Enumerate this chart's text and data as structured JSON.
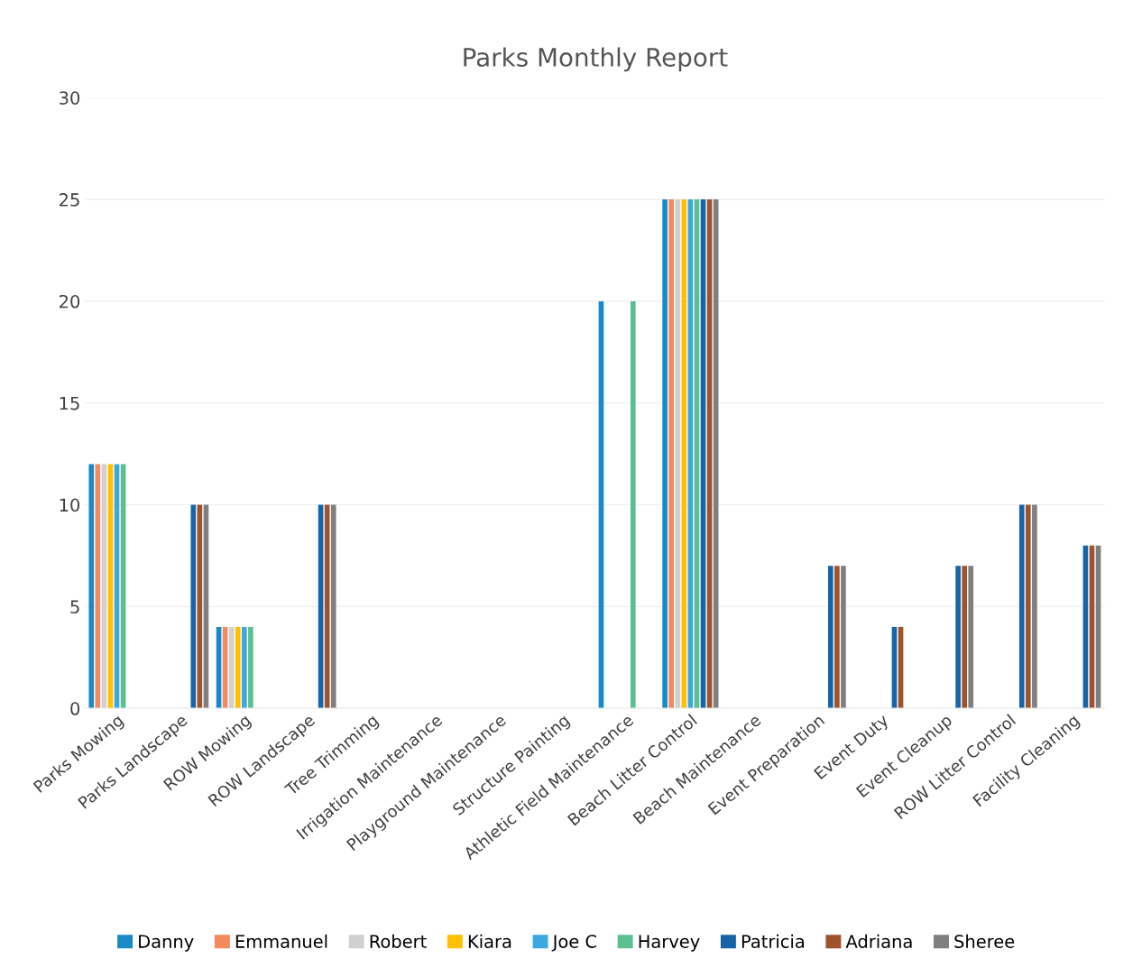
{
  "chart_data": {
    "type": "bar",
    "title": "Parks Monthly Report",
    "categories": [
      "Parks Mowing",
      "Parks Landscape",
      "ROW Mowing",
      "ROW Landscape",
      "Tree Trimming",
      "Irrigation Maintenance",
      "Playground Maintenance",
      "Structure Painting",
      "Athletic Field Maintenance",
      "Beach Litter Control",
      "Beach Maintenance",
      "Event Preparation",
      "Event Duty",
      "Event Cleanup",
      "ROW Litter Control",
      "Facility Cleaning"
    ],
    "series": [
      {
        "name": "Danny",
        "color": "#1a8ac6",
        "values": [
          12,
          null,
          4,
          null,
          null,
          null,
          null,
          null,
          20,
          25,
          null,
          null,
          null,
          null,
          null,
          null
        ]
      },
      {
        "name": "Emmanuel",
        "color": "#f4895f",
        "values": [
          12,
          null,
          4,
          null,
          null,
          null,
          null,
          null,
          null,
          25,
          null,
          null,
          null,
          null,
          null,
          null
        ]
      },
      {
        "name": "Robert",
        "color": "#d0d0d0",
        "values": [
          12,
          null,
          4,
          null,
          null,
          null,
          null,
          null,
          null,
          25,
          null,
          null,
          null,
          null,
          null,
          null
        ]
      },
      {
        "name": "Kiara",
        "color": "#ffc000",
        "values": [
          12,
          null,
          4,
          null,
          null,
          null,
          null,
          null,
          null,
          25,
          null,
          null,
          null,
          null,
          null,
          null
        ]
      },
      {
        "name": "Joe C",
        "color": "#3ba9e0",
        "values": [
          12,
          null,
          4,
          null,
          null,
          null,
          null,
          null,
          null,
          25,
          null,
          null,
          null,
          null,
          null,
          null
        ]
      },
      {
        "name": "Harvey",
        "color": "#5bbf8f",
        "values": [
          12,
          null,
          4,
          null,
          null,
          null,
          null,
          null,
          20,
          25,
          null,
          null,
          null,
          null,
          null,
          null
        ]
      },
      {
        "name": "Patricia",
        "color": "#1565a8",
        "values": [
          null,
          10,
          null,
          10,
          null,
          null,
          null,
          null,
          null,
          25,
          null,
          7,
          4,
          7,
          10,
          8
        ]
      },
      {
        "name": "Adriana",
        "color": "#a0522d",
        "values": [
          null,
          10,
          null,
          10,
          null,
          null,
          null,
          null,
          null,
          25,
          null,
          7,
          4,
          7,
          10,
          8
        ]
      },
      {
        "name": "Sheree",
        "color": "#7f7f7f",
        "values": [
          null,
          10,
          null,
          10,
          null,
          null,
          null,
          null,
          null,
          25,
          null,
          7,
          null,
          7,
          10,
          8
        ]
      }
    ],
    "ylim": [
      0,
      30
    ],
    "yticks": [
      0,
      5,
      10,
      15,
      20,
      25,
      30
    ],
    "grid": "y",
    "legend": "bottom"
  }
}
